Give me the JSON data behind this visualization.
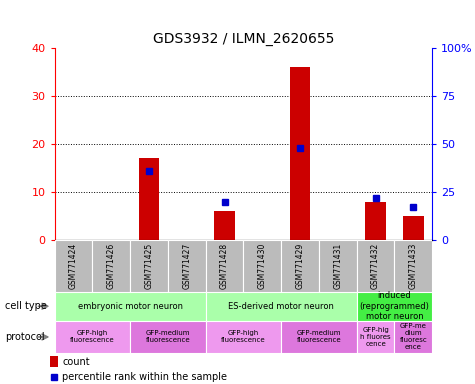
{
  "title": "GDS3932 / ILMN_2620655",
  "samples": [
    "GSM771424",
    "GSM771426",
    "GSM771425",
    "GSM771427",
    "GSM771428",
    "GSM771430",
    "GSM771429",
    "GSM771431",
    "GSM771432",
    "GSM771433"
  ],
  "counts": [
    0,
    0,
    17,
    0,
    6,
    0,
    36,
    0,
    8,
    5
  ],
  "percentiles": [
    0,
    0,
    36,
    0,
    20,
    0,
    48,
    0,
    22,
    17
  ],
  "ylim_left": [
    0,
    40
  ],
  "ylim_right": [
    0,
    100
  ],
  "yticks_left": [
    0,
    10,
    20,
    30,
    40
  ],
  "yticks_right": [
    0,
    25,
    50,
    75,
    100
  ],
  "yticklabels_right": [
    "0",
    "25",
    "50",
    "75",
    "100%"
  ],
  "bar_color": "#cc0000",
  "dot_color": "#0000cc",
  "cell_type_groups": [
    {
      "label": "embryonic motor neuron",
      "start": 0,
      "end": 4,
      "color": "#aaffaa"
    },
    {
      "label": "ES-derived motor neuron",
      "start": 4,
      "end": 8,
      "color": "#aaffaa"
    },
    {
      "label": "induced\n(reprogrammed)\nmotor neuron",
      "start": 8,
      "end": 10,
      "color": "#44ee44"
    }
  ],
  "protocol_groups": [
    {
      "label": "GFP-high\nfluorescence",
      "start": 0,
      "end": 2,
      "color": "#ee99ee"
    },
    {
      "label": "GFP-medium\nfluorescence",
      "start": 2,
      "end": 4,
      "color": "#dd77dd"
    },
    {
      "label": "GFP-high\nfluorescence",
      "start": 4,
      "end": 6,
      "color": "#ee99ee"
    },
    {
      "label": "GFP-medium\nfluorescence",
      "start": 6,
      "end": 8,
      "color": "#dd77dd"
    },
    {
      "label": "GFP-hig\nh fluores\ncence",
      "start": 8,
      "end": 9,
      "color": "#ee99ee"
    },
    {
      "label": "GFP-me\ndium\nfluoresc\nence",
      "start": 9,
      "end": 10,
      "color": "#dd77dd"
    }
  ],
  "legend_count_label": "count",
  "legend_pct_label": "percentile rank within the sample",
  "cell_type_label": "cell type",
  "protocol_label": "protocol",
  "sample_bg_color": "#bbbbbb",
  "title_fontsize": 10
}
